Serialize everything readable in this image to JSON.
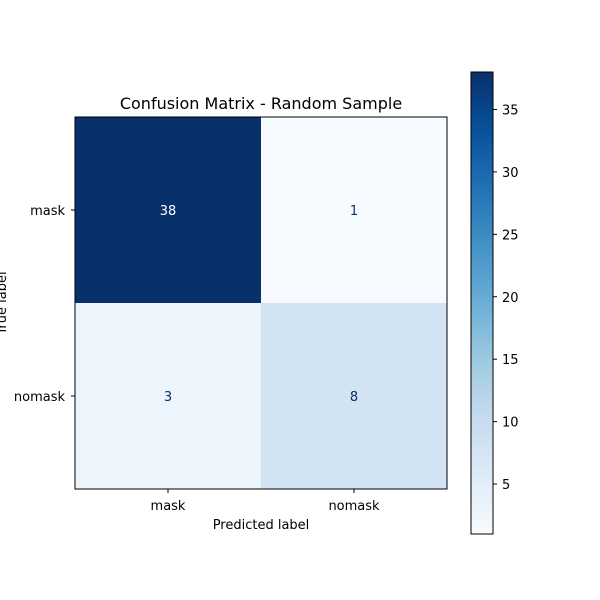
{
  "chart_data": {
    "type": "heatmap",
    "title": "Confusion Matrix - Random Sample",
    "xlabel": "Predicted label",
    "ylabel": "True label",
    "x_categories": [
      "mask",
      "nomask"
    ],
    "y_categories": [
      "mask",
      "nomask"
    ],
    "values": [
      [
        38,
        1
      ],
      [
        3,
        8
      ]
    ],
    "colormap": "Blues",
    "colorbar": {
      "range": [
        1,
        38
      ],
      "ticks": [
        5,
        10,
        15,
        20,
        25,
        30,
        35
      ]
    },
    "text_colors": {
      "light": "#ffffff",
      "dark": "#08306b"
    }
  }
}
